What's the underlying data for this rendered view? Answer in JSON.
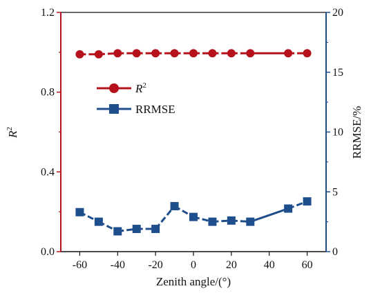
{
  "chart_data": {
    "type": "line",
    "x": [
      -60,
      -50,
      -40,
      -30,
      -20,
      -10,
      0,
      10,
      20,
      30,
      50,
      60
    ],
    "xlabel": "Zenith angle/(°)",
    "xlim": [
      -70,
      70
    ],
    "xticks": [
      -60,
      -40,
      -20,
      0,
      20,
      40,
      60
    ],
    "ylabel_left": "R²",
    "ylim_left": [
      0,
      1.2
    ],
    "yticks_left": [
      0.0,
      0.4,
      0.8,
      1.2
    ],
    "ylabel_right": "RRMSE/%",
    "ylim_right": [
      0,
      20
    ],
    "yticks_right": [
      0,
      5,
      10,
      15,
      20
    ],
    "grid": false,
    "legend": "upper-left-inside",
    "series": [
      {
        "name": "R",
        "name_sup": "2",
        "axis": "left",
        "marker": "circle",
        "color": "#b5121b",
        "values": [
          0.99,
          0.99,
          0.995,
          0.995,
          0.995,
          0.995,
          0.995,
          0.995,
          0.995,
          0.995,
          0.995,
          0.995
        ]
      },
      {
        "name": "RRMSE",
        "axis": "right",
        "marker": "square",
        "color": "#1f4e8c",
        "values": [
          3.3,
          2.5,
          1.7,
          1.9,
          1.9,
          3.8,
          2.9,
          2.5,
          2.6,
          2.5,
          3.6,
          4.2
        ]
      }
    ],
    "left_axis_color": "#b5121b",
    "right_axis_color": "#1f4e8c"
  }
}
